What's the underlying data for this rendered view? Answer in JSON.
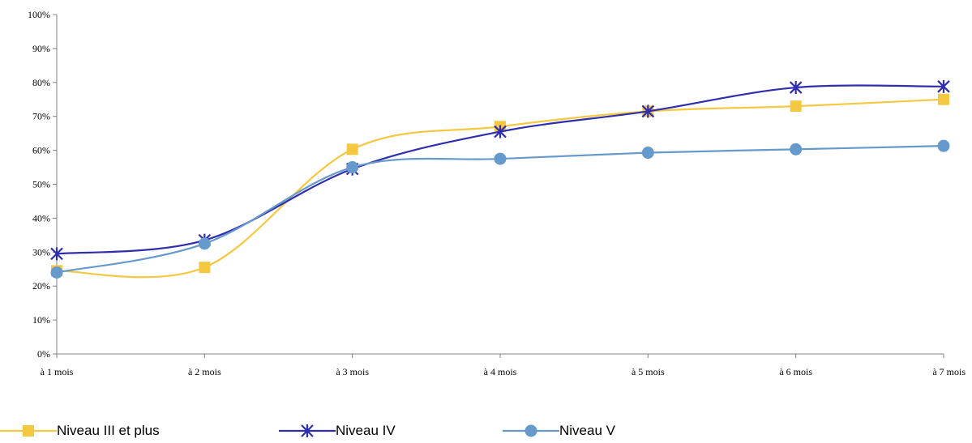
{
  "chart_data": {
    "type": "line",
    "title": "",
    "xlabel": "",
    "ylabel": "",
    "categories": [
      "à 1 mois",
      "à 2 mois",
      "à 3 mois",
      "à 4 mois",
      "à 5 mois",
      "à 6 mois",
      "à 7 mois"
    ],
    "ylim": [
      0,
      100
    ],
    "yticks": [
      "0%",
      "10%",
      "20%",
      "30%",
      "40%",
      "50%",
      "60%",
      "70%",
      "80%",
      "90%",
      "100%"
    ],
    "grid": false,
    "legend_position": "bottom",
    "smooth": true,
    "series": [
      {
        "name": "Niveau III et plus",
        "values": [
          24.5,
          25.5,
          60.3,
          67,
          71.5,
          73,
          75
        ],
        "color": "#F5C842",
        "marker": "square"
      },
      {
        "name": "Niveau IV",
        "values": [
          29.5,
          33.5,
          54.5,
          65.5,
          71.5,
          78.5,
          78.8
        ],
        "color": "#2E2EAE",
        "marker": "asterisk"
      },
      {
        "name": "Niveau V",
        "values": [
          24,
          32.5,
          55,
          57.5,
          59.3,
          60.3,
          61.3
        ],
        "color": "#6699CC",
        "marker": "circle"
      }
    ]
  }
}
